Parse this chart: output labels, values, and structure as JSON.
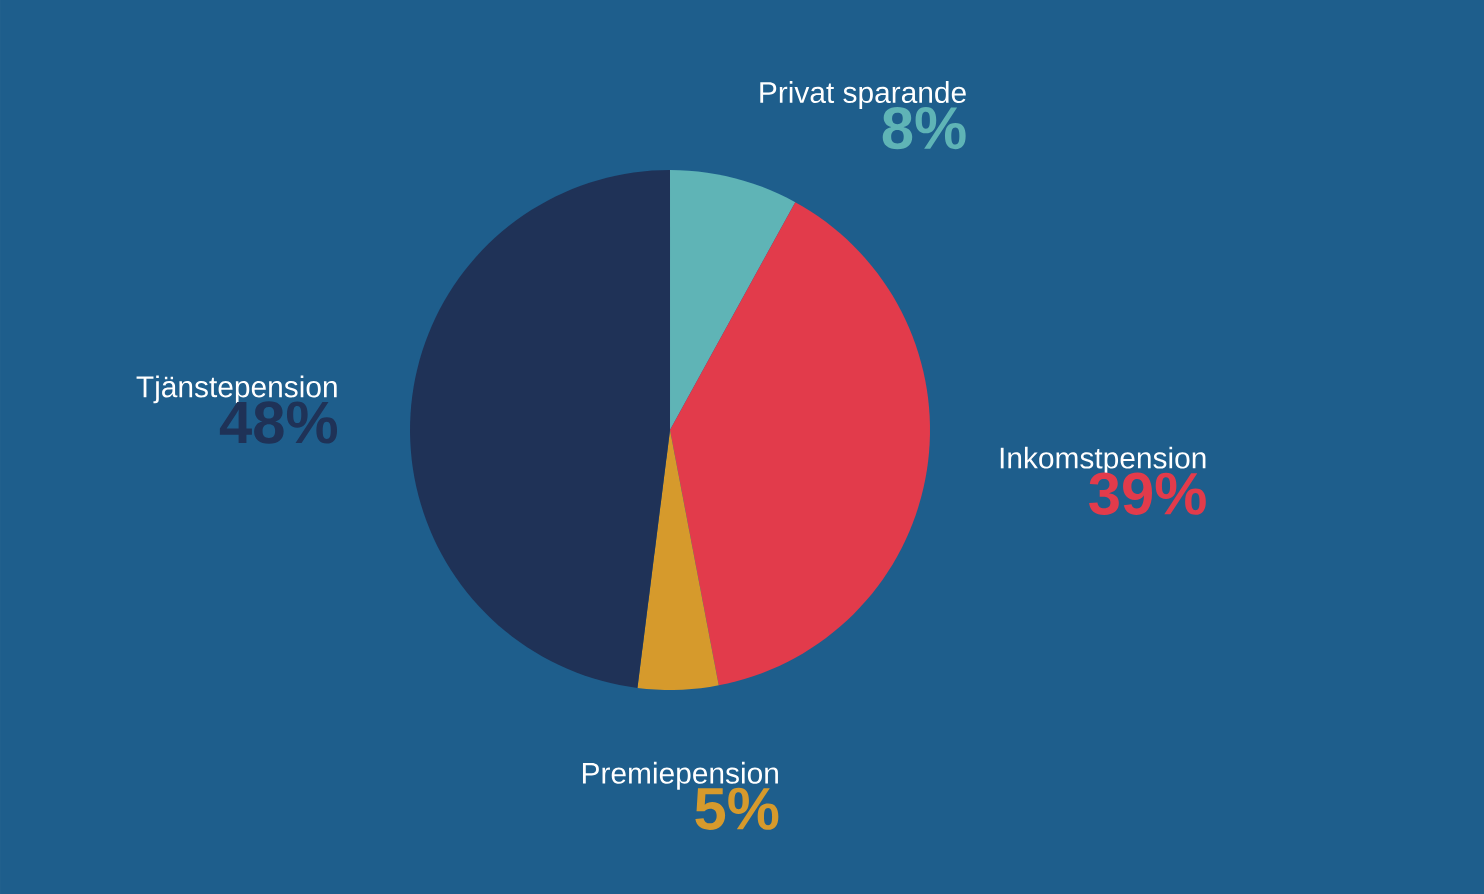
{
  "chart_data": {
    "type": "pie",
    "categories": [
      "Privat sparande",
      "Inkomstpension",
      "Premiepension",
      "Tjänstepension"
    ],
    "values": [
      8,
      39,
      5,
      48
    ],
    "value_labels": [
      "8%",
      "39%",
      "5%",
      "48%"
    ],
    "colors": [
      "#5fb4b6",
      "#e23b4b",
      "#d69a2c",
      "#1f3257"
    ]
  }
}
